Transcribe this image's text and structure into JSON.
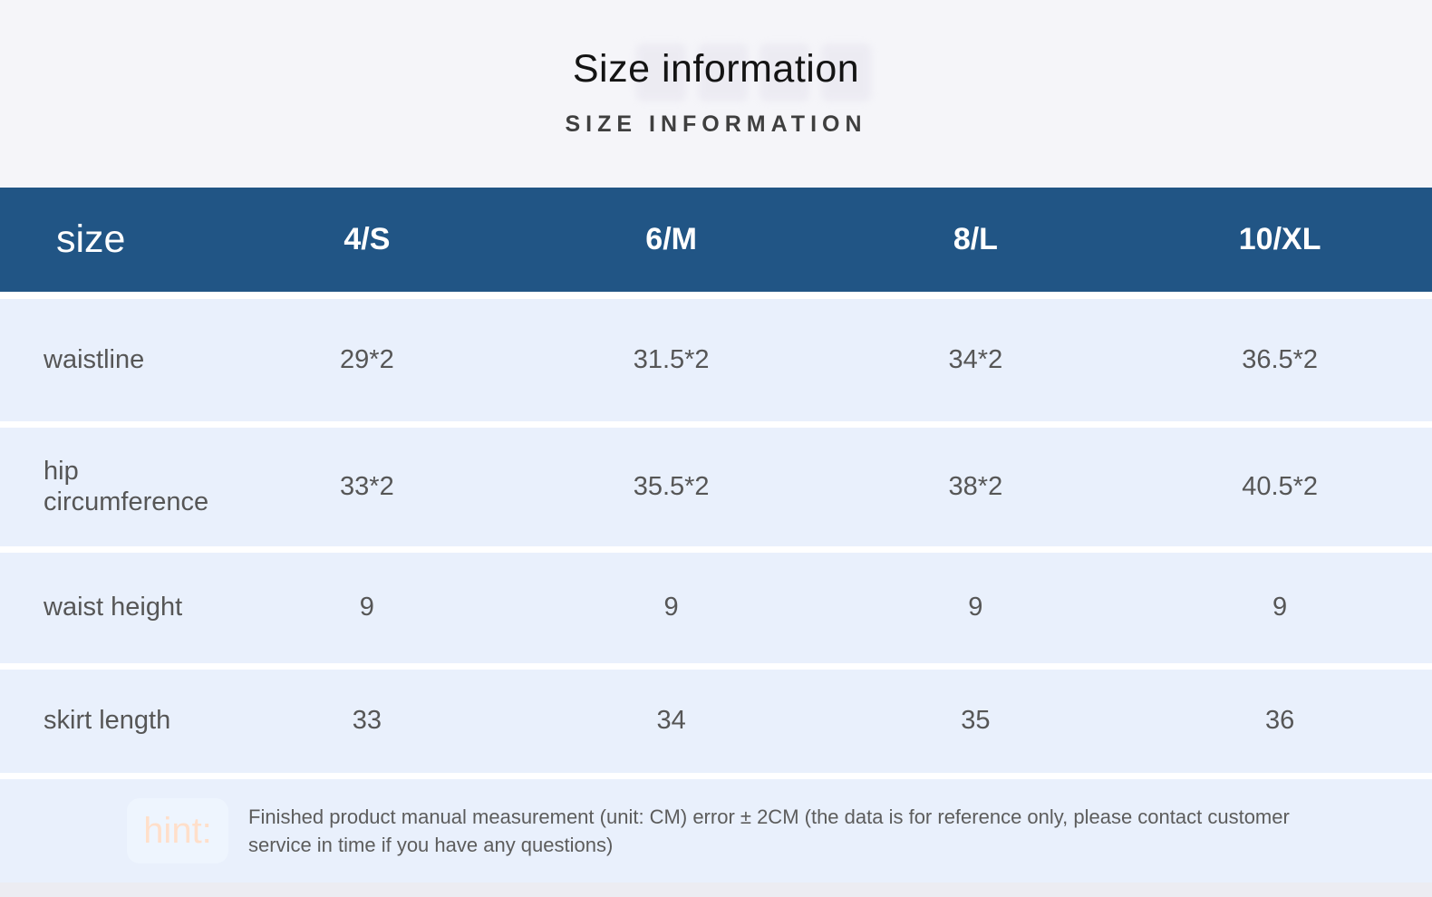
{
  "header": {
    "title": "Size information",
    "subtitle": "SIZE INFORMATION"
  },
  "table": {
    "corner_label": "size",
    "columns": [
      "4/S",
      "6/M",
      "8/L",
      "10/XL"
    ],
    "rows": [
      {
        "label": "waistline",
        "values": [
          "29*2",
          "31.5*2",
          "34*2",
          "36.5*2"
        ]
      },
      {
        "label": "hip circumference",
        "values": [
          "33*2",
          "35.5*2",
          "38*2",
          "40.5*2"
        ]
      },
      {
        "label": "waist height",
        "values": [
          "9",
          "9",
          "9",
          "9"
        ]
      },
      {
        "label": "skirt length",
        "values": [
          "33",
          "34",
          "35",
          "36"
        ]
      }
    ]
  },
  "hint": {
    "label": "hint:",
    "text": "Finished product manual measurement (unit: CM) error ± 2CM (the data is for reference only, please contact customer service in time if you have any questions)"
  },
  "colors": {
    "header_bg": "#215585",
    "header_text": "#ffffff",
    "row_bg": "#e9f0fc",
    "page_bg": "#f5f5f9",
    "divider": "#ffffff",
    "body_text": "#565656",
    "hint_label_text": "#ffdfca",
    "hint_badge_bg": "#eef5fe",
    "bottom_strip": "#ececf2"
  },
  "chart_data": {
    "type": "table",
    "title": "Size information",
    "subtitle": "SIZE INFORMATION",
    "columns": [
      "size",
      "4/S",
      "6/M",
      "8/L",
      "10/XL"
    ],
    "rows": [
      [
        "waistline",
        "29*2",
        "31.5*2",
        "34*2",
        "36.5*2"
      ],
      [
        "hip circumference",
        "33*2",
        "35.5*2",
        "38*2",
        "40.5*2"
      ],
      [
        "waist height",
        "9",
        "9",
        "9",
        "9"
      ],
      [
        "skirt length",
        "33",
        "34",
        "35",
        "36"
      ]
    ],
    "note": "hint: Finished product manual measurement (unit: CM) error ± 2CM (the data is for reference only, please contact customer service in time if you have any questions)",
    "unit": "CM"
  }
}
